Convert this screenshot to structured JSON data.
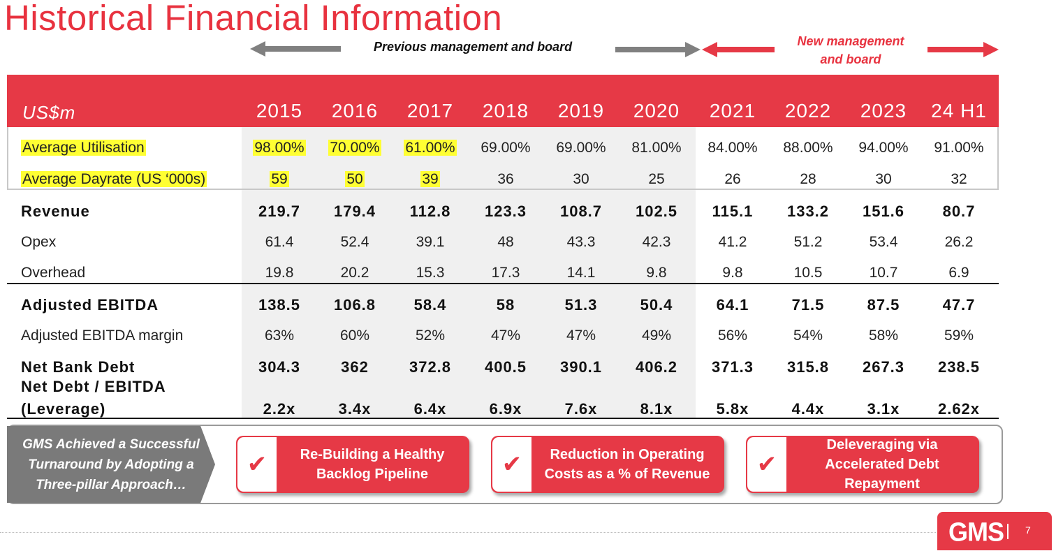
{
  "title": "Historical Financial Information",
  "periods": {
    "previous": "Previous management and board",
    "new_line1": "New management",
    "new_line2": "and board"
  },
  "table": {
    "unit_label": "US$m",
    "years": [
      "2015",
      "2016",
      "2017",
      "2018",
      "2019",
      "2020",
      "2021",
      "2022",
      "2023",
      "24 H1"
    ],
    "rows": {
      "utilisation": {
        "label": "Average Utilisation",
        "values": [
          "98.00%",
          "70.00%",
          "61.00%",
          "69.00%",
          "69.00%",
          "81.00%",
          "84.00%",
          "88.00%",
          "94.00%",
          "91.00%"
        ]
      },
      "dayrate": {
        "label": "Average Dayrate (US ‘000s)",
        "values": [
          "59",
          "50",
          "39",
          "36",
          "30",
          "25",
          "26",
          "28",
          "30",
          "32"
        ]
      },
      "revenue": {
        "label": "Revenue",
        "values": [
          "219.7",
          "179.4",
          "112.8",
          "123.3",
          "108.7",
          "102.5",
          "115.1",
          "133.2",
          "151.6",
          "80.7"
        ]
      },
      "opex": {
        "label": "Opex",
        "values": [
          "61.4",
          "52.4",
          "39.1",
          "48",
          "43.3",
          "42.3",
          "41.2",
          "51.2",
          "53.4",
          "26.2"
        ]
      },
      "overhead": {
        "label": "Overhead",
        "values": [
          "19.8",
          "20.2",
          "15.3",
          "17.3",
          "14.1",
          "9.8",
          "9.8",
          "10.5",
          "10.7",
          "6.9"
        ]
      },
      "ebitda": {
        "label": "Adjusted EBITDA",
        "values": [
          "138.5",
          "106.8",
          "58.4",
          "58",
          "51.3",
          "50.4",
          "64.1",
          "71.5",
          "87.5",
          "47.7"
        ]
      },
      "ebitda_margin": {
        "label": "Adjusted EBITDA margin",
        "values": [
          "63%",
          "60%",
          "52%",
          "47%",
          "47%",
          "49%",
          "56%",
          "54%",
          "58%",
          "59%"
        ]
      },
      "net_bank_debt": {
        "label": "Net Bank Debt",
        "values": [
          "304.3",
          "362",
          "372.8",
          "400.5",
          "390.1",
          "406.2",
          "371.3",
          "315.8",
          "267.3",
          "238.5"
        ]
      },
      "leverage": {
        "label_line1": "Net Debt / EBITDA",
        "label_line2": "(Leverage)",
        "values": [
          "2.2x",
          "3.4x",
          "6.4x",
          "6.9x",
          "7.6x",
          "8.1x",
          "5.8x",
          "4.4x",
          "3.1x",
          "2.62x"
        ]
      }
    }
  },
  "approach": {
    "intro_line1": "GMS Achieved a Successful",
    "intro_line2": "Turnaround by Adopting a",
    "intro_line3": "Three-pillar Approach…",
    "check_glyph": "✔",
    "pillars": [
      {
        "line1": "Re-Building a Healthy",
        "line2": "Backlog Pipeline",
        "line3": ""
      },
      {
        "line1": "Reduction in Operating",
        "line2": "Costs as a % of Revenue",
        "line3": ""
      },
      {
        "line1": "Deleveraging via",
        "line2": "Accelerated Debt",
        "line3": "Repayment"
      }
    ]
  },
  "footer": {
    "logo": "GMS",
    "page_number": "7"
  },
  "colors": {
    "accent": "#e63946",
    "title": "#e8323f",
    "gray_arrow": "#808080",
    "highlight": "#ffff33"
  }
}
